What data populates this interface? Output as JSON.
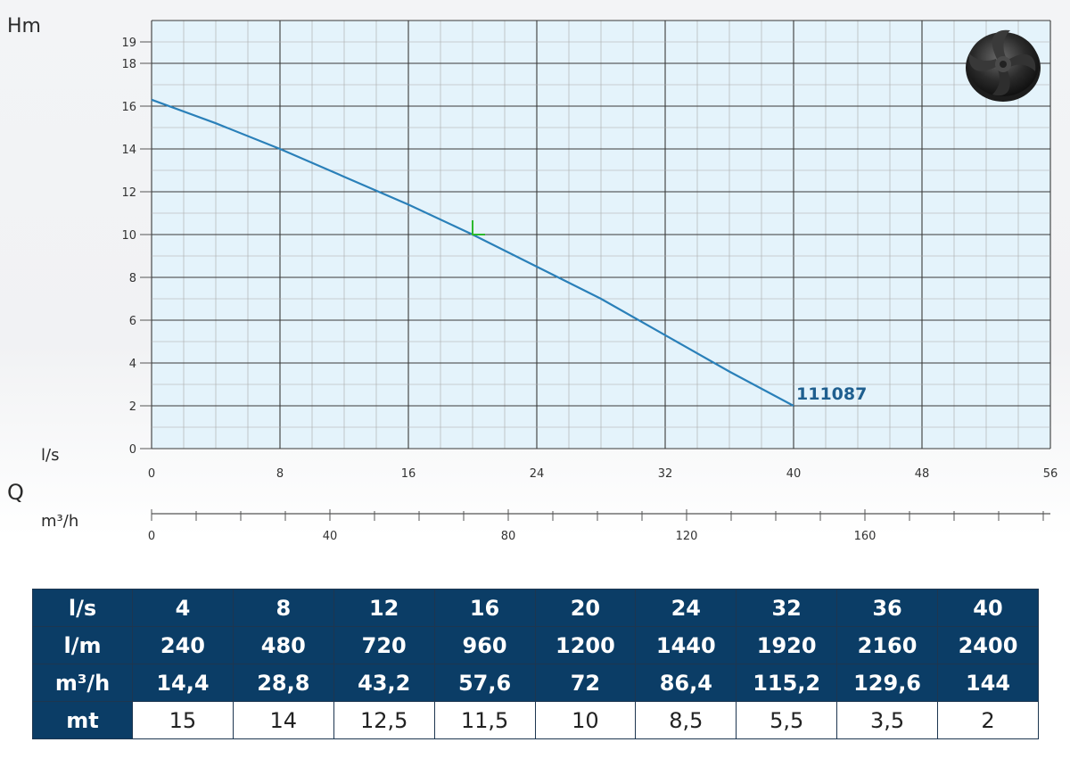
{
  "chart_data": {
    "type": "line",
    "ylabel": "Hm",
    "xlabel_q": "Q",
    "x_unit_ls": "l/s",
    "x_unit_m3h": "m³/h",
    "y_ticks": [
      "0",
      "2",
      "4",
      "6",
      "8",
      "10",
      "12",
      "14",
      "16",
      "18",
      "19"
    ],
    "y_tick_values": [
      0,
      2,
      4,
      6,
      8,
      10,
      12,
      14,
      16,
      18,
      19
    ],
    "x_ticks_ls": [
      "0",
      "8",
      "16",
      "24",
      "32",
      "40",
      "48",
      "56"
    ],
    "x_tick_values_ls": [
      0,
      8,
      16,
      24,
      32,
      40,
      48,
      56
    ],
    "x_ticks_m3h": [
      "0",
      "40",
      "80",
      "120",
      "160"
    ],
    "x_tick_values_m3h": [
      0,
      40,
      80,
      120,
      160
    ],
    "xlim_ls": [
      0,
      56
    ],
    "xlim_m3h": [
      0,
      201.6
    ],
    "ylim": [
      0,
      20
    ],
    "grid": true,
    "series": [
      {
        "name": "111087",
        "color": "#2a80b9",
        "x": [
          0,
          4,
          8,
          12,
          16,
          20,
          24,
          28,
          32,
          36,
          40
        ],
        "y": [
          16.3,
          15.2,
          14.0,
          12.7,
          11.4,
          10.0,
          8.5,
          7.0,
          5.3,
          3.6,
          2.0
        ]
      }
    ],
    "marker": {
      "x": 20,
      "y": 10,
      "color": "#2db82d"
    }
  },
  "table": {
    "rows": [
      {
        "head": "l/s",
        "cells": [
          "4",
          "8",
          "12",
          "16",
          "20",
          "24",
          "32",
          "36",
          "40"
        ],
        "style": "dark"
      },
      {
        "head": "l/m",
        "cells": [
          "240",
          "480",
          "720",
          "960",
          "1200",
          "1440",
          "1920",
          "2160",
          "2400"
        ],
        "style": "dark"
      },
      {
        "head": "m³/h",
        "cells": [
          "14,4",
          "28,8",
          "43,2",
          "57,6",
          "72",
          "86,4",
          "115,2",
          "129,6",
          "144"
        ],
        "style": "dark"
      },
      {
        "head": "mt",
        "cells": [
          "15",
          "14",
          "12,5",
          "11,5",
          "10",
          "8,5",
          "5,5",
          "3,5",
          "2"
        ],
        "style": "light"
      }
    ]
  },
  "colors": {
    "plot_background": "#e4f3fb",
    "grid_major": "#3a3a3a",
    "grid_minor": "#a9a9a9",
    "table_header": "#0b3d66"
  },
  "icons": {
    "impeller": "impeller-icon"
  }
}
